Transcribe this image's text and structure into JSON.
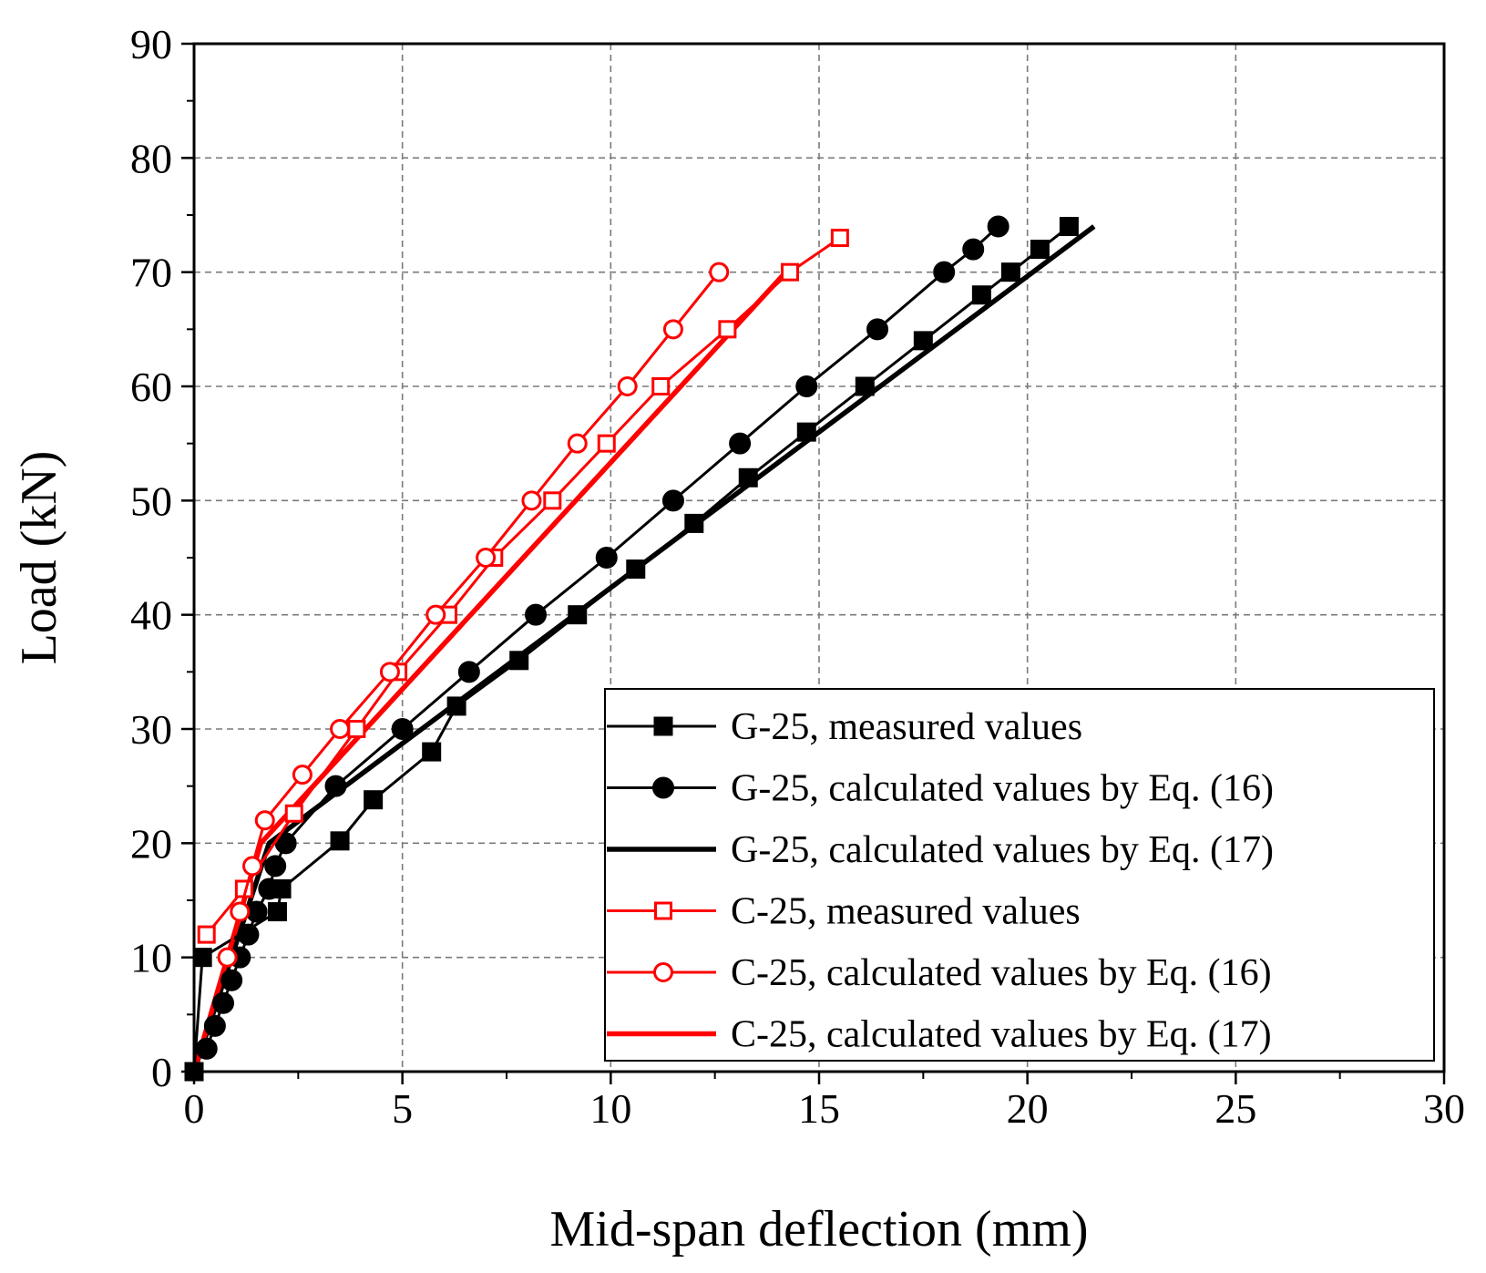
{
  "chart_data": {
    "type": "line",
    "title": "",
    "xlabel": "Mid-span deflection (mm)",
    "ylabel": "Load (kN)",
    "xlim": [
      0,
      30
    ],
    "ylim": [
      0,
      90
    ],
    "x_ticks": [
      "0",
      "5",
      "10",
      "15",
      "20",
      "25",
      "30"
    ],
    "y_ticks": [
      "0",
      "10",
      "20",
      "30",
      "40",
      "50",
      "60",
      "70",
      "80",
      "90"
    ],
    "grid": true,
    "legend_position": "bottom-right",
    "series": [
      {
        "name": "G-25, measured values",
        "color": "#000000",
        "marker": "square",
        "filled": true,
        "line_width": "thin",
        "points": [
          [
            0,
            0
          ],
          [
            0.2,
            10
          ],
          [
            2,
            14
          ],
          [
            2.1,
            16
          ],
          [
            3.5,
            20.2
          ],
          [
            4.3,
            23.8
          ],
          [
            5.7,
            28
          ],
          [
            6.3,
            32
          ],
          [
            7.8,
            36
          ],
          [
            9.2,
            40
          ],
          [
            10.6,
            44
          ],
          [
            12,
            48
          ],
          [
            13.3,
            52
          ],
          [
            14.7,
            56
          ],
          [
            16.1,
            60
          ],
          [
            17.5,
            64
          ],
          [
            18.9,
            68
          ],
          [
            19.6,
            70
          ],
          [
            20.3,
            72
          ],
          [
            21,
            74
          ]
        ]
      },
      {
        "name": "G-25, calculated values by Eq. (16)",
        "color": "#000000",
        "marker": "circle",
        "filled": true,
        "line_width": "thin",
        "points": [
          [
            0.3,
            2
          ],
          [
            0.5,
            4
          ],
          [
            0.7,
            6
          ],
          [
            0.9,
            8
          ],
          [
            1.1,
            10
          ],
          [
            1.3,
            12
          ],
          [
            1.5,
            14
          ],
          [
            1.8,
            16
          ],
          [
            1.95,
            18
          ],
          [
            2.2,
            20
          ],
          [
            3.4,
            25
          ],
          [
            5,
            30
          ],
          [
            6.6,
            35
          ],
          [
            8.2,
            40
          ],
          [
            9.9,
            45
          ],
          [
            11.5,
            50
          ],
          [
            13.1,
            55
          ],
          [
            14.7,
            60
          ],
          [
            16.4,
            65
          ],
          [
            18,
            70
          ],
          [
            18.7,
            72
          ],
          [
            19.3,
            74
          ]
        ]
      },
      {
        "name": "G-25, calculated values by Eq. (17)",
        "color": "#000000",
        "marker": "none",
        "filled": false,
        "line_width": "thick",
        "points": [
          [
            0,
            0
          ],
          [
            1.8,
            20
          ],
          [
            21.6,
            74
          ]
        ]
      },
      {
        "name": "C-25, measured values",
        "color": "#ff0000",
        "marker": "square",
        "filled": false,
        "line_width": "thin",
        "points": [
          [
            0.3,
            12
          ],
          [
            1.2,
            16
          ],
          [
            2.4,
            22.6
          ],
          [
            3.9,
            30
          ],
          [
            4.9,
            35
          ],
          [
            6.1,
            40
          ],
          [
            7.2,
            45
          ],
          [
            8.6,
            50
          ],
          [
            9.9,
            55
          ],
          [
            11.2,
            60
          ],
          [
            12.8,
            65
          ],
          [
            14.3,
            70
          ],
          [
            15.5,
            73
          ]
        ]
      },
      {
        "name": "C-25, calculated values by Eq. (16)",
        "color": "#ff0000",
        "marker": "circle",
        "filled": false,
        "line_width": "thin",
        "points": [
          [
            0.8,
            10
          ],
          [
            1.1,
            14
          ],
          [
            1.4,
            18
          ],
          [
            1.7,
            22
          ],
          [
            2.6,
            26
          ],
          [
            3.5,
            30
          ],
          [
            4.7,
            35
          ],
          [
            5.8,
            40
          ],
          [
            7,
            45
          ],
          [
            8.1,
            50
          ],
          [
            9.2,
            55
          ],
          [
            10.4,
            60
          ],
          [
            11.5,
            65
          ],
          [
            12.6,
            70
          ]
        ]
      },
      {
        "name": "C-25, calculated values by Eq. (17)",
        "color": "#ff0000",
        "marker": "none",
        "filled": false,
        "line_width": "thick",
        "points": [
          [
            0,
            0
          ],
          [
            1.6,
            20
          ],
          [
            14.2,
            70
          ]
        ]
      }
    ]
  }
}
